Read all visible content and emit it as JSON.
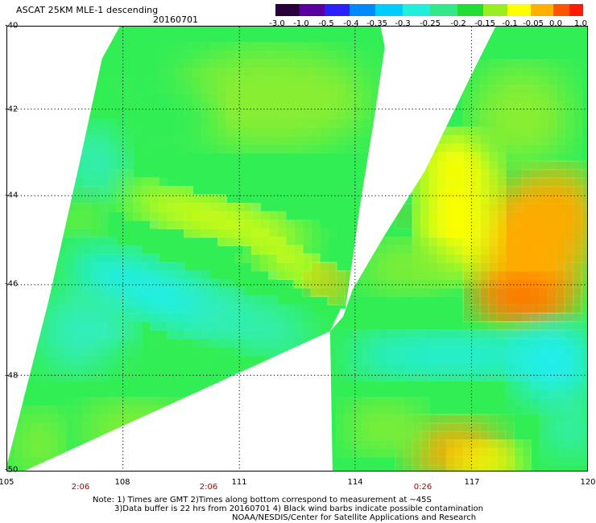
{
  "header": {
    "title": "ASCAT 25KM MLE-1 descending",
    "date": "20160701"
  },
  "colorbar": {
    "labels": [
      "-3.0",
      "-1.0",
      "-0.5",
      "-0.4",
      "-0.35",
      "-0.3",
      "-0.25",
      "-0.2",
      "-0.15",
      "-0.1",
      "-0.05",
      "0.0",
      "1.0"
    ],
    "colors": [
      "#2a003a",
      "#5a00a0",
      "#2a20ff",
      "#0088ff",
      "#00ccff",
      "#22eedd",
      "#33e888",
      "#22dd33",
      "#99ee22",
      "#ffff00",
      "#ffb000",
      "#ff5500",
      "#ff1a00"
    ]
  },
  "axes": {
    "lat_labels": [
      "-40",
      "-42",
      "-44",
      "-46",
      "-48",
      "-50"
    ],
    "lon_labels": [
      "105",
      "108",
      "111",
      "114",
      "117",
      "120"
    ],
    "time_labels": [
      "2:06",
      "2:06",
      "0:26"
    ]
  },
  "field_palette": {
    "cyan": "#22eeee",
    "aqua": "#33eebb",
    "green": "#33ee55",
    "lime": "#88ee33",
    "yellow": "#ffff00",
    "orange": "#ffaa00",
    "red": "#ff6a00"
  },
  "notes": {
    "line1": "Note: 1) Times are GMT 2)Times along bottom correspond to measurement at ~45S",
    "line2": "3)Data buffer is 22 hrs from 20160701 4) Black wind barbs indicate possible contamination",
    "line3": "NOAA/NESDIS/Center for Satellite Applications and Research"
  }
}
